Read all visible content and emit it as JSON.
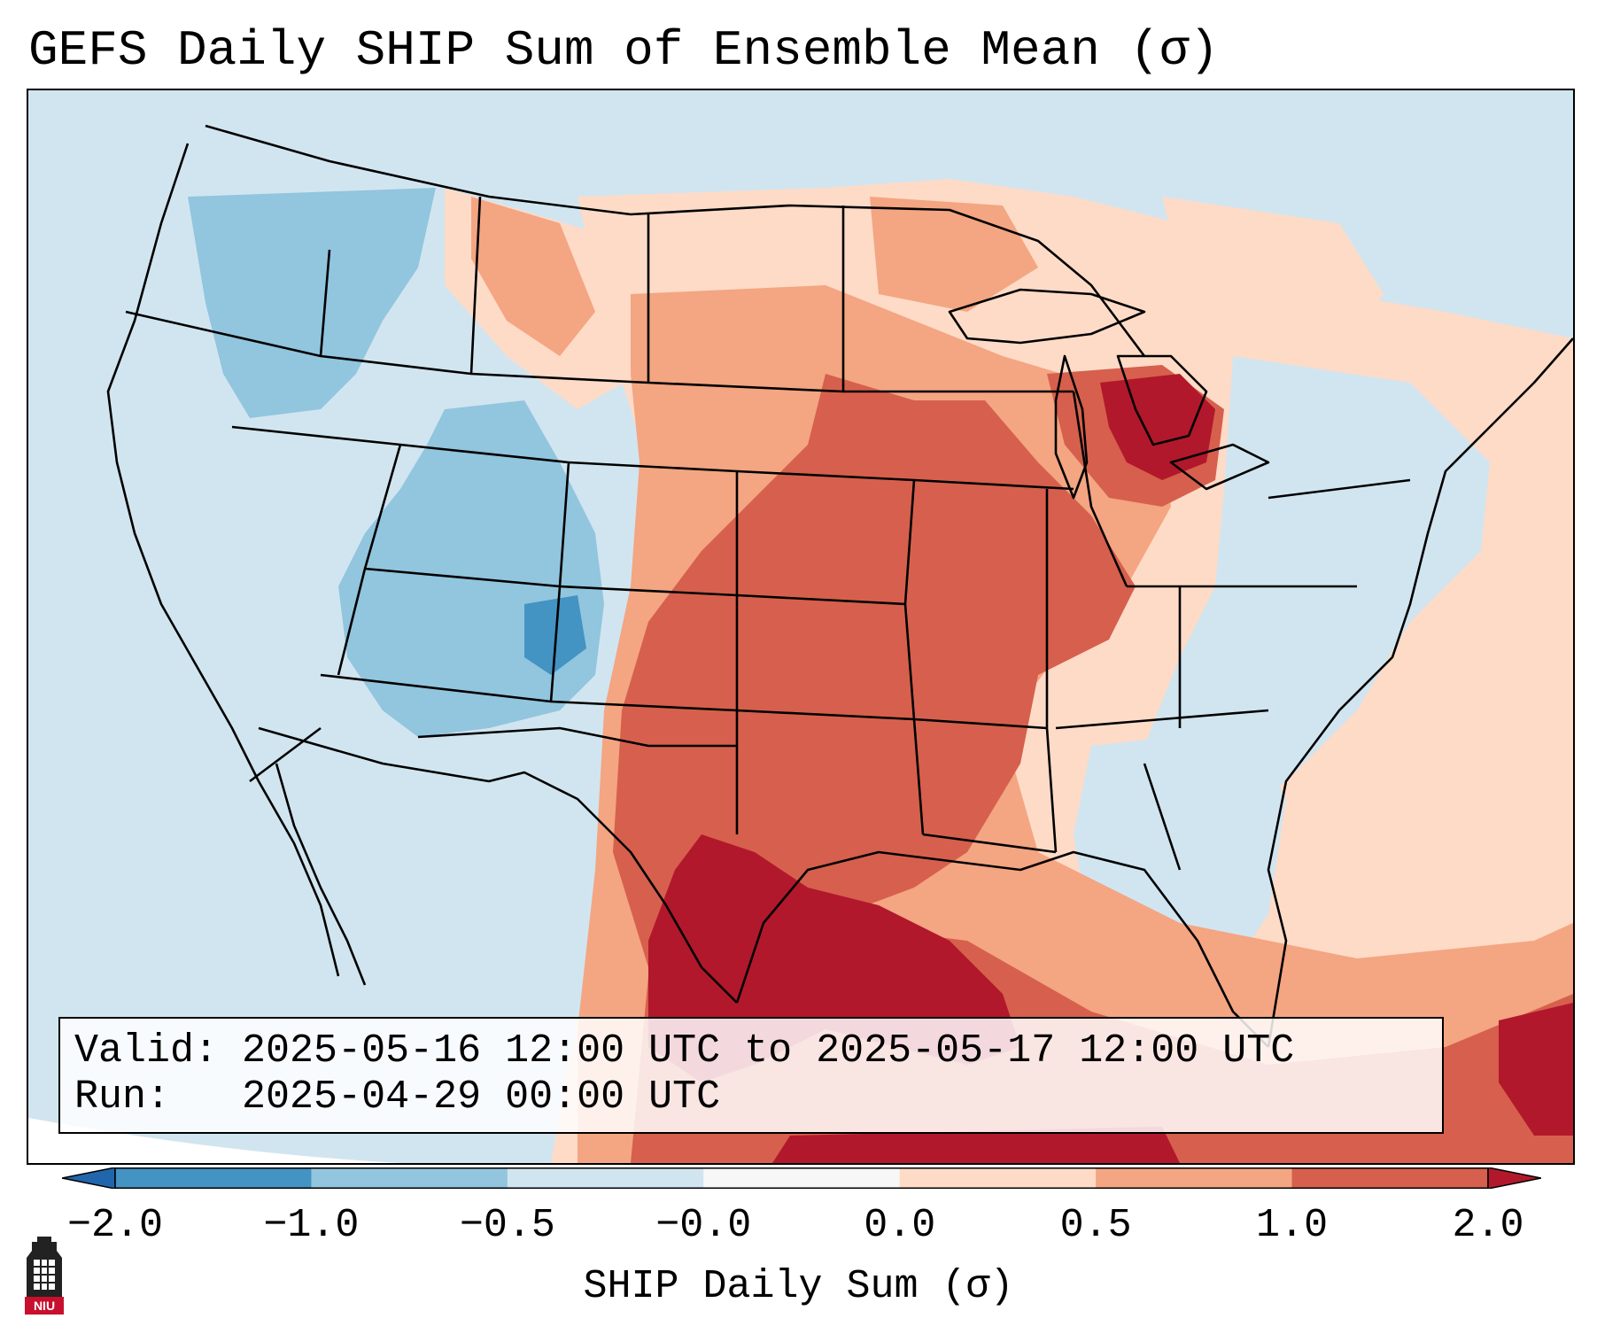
{
  "title": "GEFS Daily SHIP Sum of Ensemble Mean (σ)",
  "info": {
    "valid_label": "Valid:",
    "valid_text": "2025-05-16 12:00 UTC to 2025-05-17 12:00 UTC",
    "run_label": "Run:",
    "run_text": "2025-04-29 00:00 UTC"
  },
  "colorbar": {
    "label": "SHIP Daily Sum (σ)",
    "ticks": [
      "−2.0",
      "−1.0",
      "−0.5",
      "−0.0",
      "0.0",
      "0.5",
      "1.0",
      "2.0"
    ],
    "colors": [
      "#2166ac",
      "#4393c3",
      "#92c5de",
      "#d1e5f0",
      "#f7f7f7",
      "#fddbc7",
      "#f4a582",
      "#d6604d",
      "#b2182b"
    ]
  },
  "map": {
    "projection": "Lambert conformal",
    "region": "Contiguous United States"
  },
  "logo": {
    "text": "NIU",
    "icon": "niu-tower-icon"
  }
}
